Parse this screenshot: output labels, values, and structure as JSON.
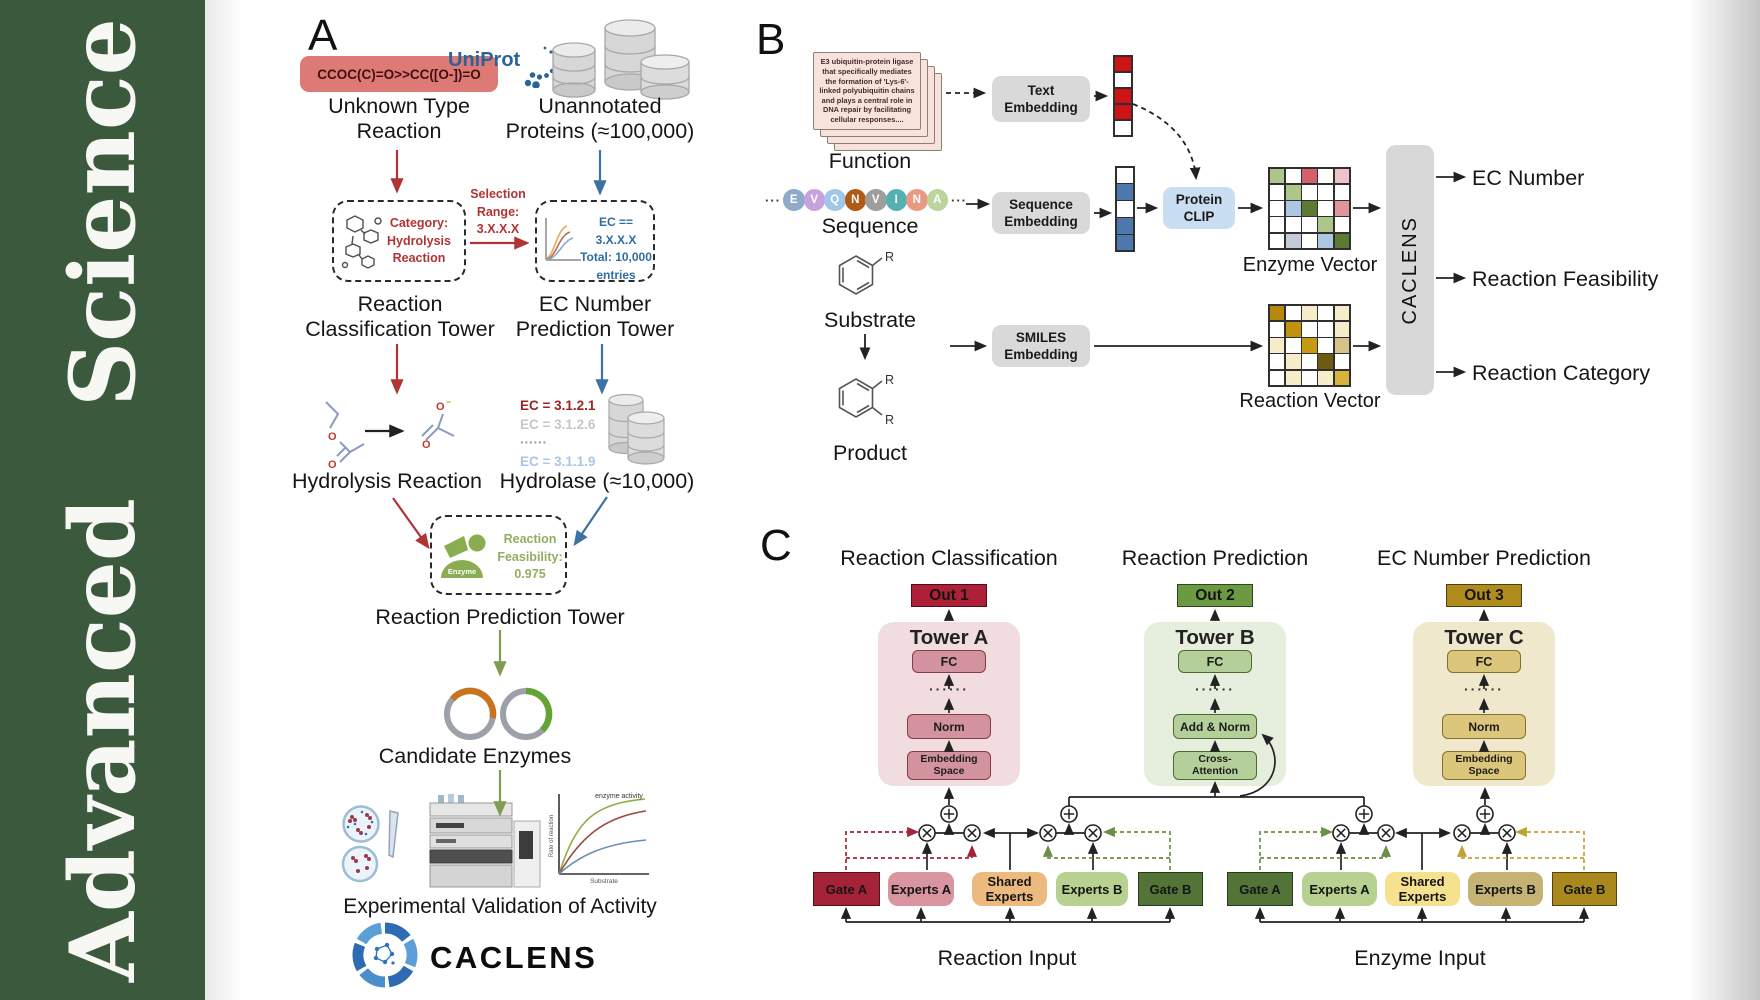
{
  "sidebar": {
    "journal": "Advanced Science",
    "bg": "#3b593d"
  },
  "panelA": {
    "label": "A",
    "smiles_reaction": "CCOC(C)=O>>CC([O-])=O",
    "smiles_bg": "#dd7a75",
    "unknown_l1": "Unknown Type",
    "unknown_l2": "Reaction",
    "uniprot": "UniProt",
    "unannotated_l1": "Unannotated",
    "unannotated_l2": "Proteins (≈100,000)",
    "classification_box": {
      "l1": "Category:",
      "l2": "Hydrolysis",
      "l3": "Reaction",
      "color": "#b13434"
    },
    "selection": {
      "l1": "Selection",
      "l2": "Range:",
      "l3": "3.X.X.X",
      "color": "#b13434"
    },
    "ec_box": {
      "l1": "EC == 3.X.X.X",
      "l2": "Total: 10,000",
      "l3": "entries",
      "color": "#2e6da4"
    },
    "tower1_l1": "Reaction",
    "tower1_l2": "Classification Tower",
    "tower2_l1": "EC Number",
    "tower2_l2": "Prediction Tower",
    "hydrolysis_label": "Hydrolysis Reaction",
    "ec_list": [
      {
        "text": "EC = 3.1.2.1",
        "color": "#9c2424",
        "bold": true
      },
      {
        "text": "EC = 3.1.2.6",
        "color": "#c6c6c6",
        "bold": false
      },
      {
        "text": "······",
        "color": "#9a9a9a",
        "bold": true
      },
      {
        "text": "EC = 3.1.1.9",
        "color": "#a9c6e4",
        "bold": false
      }
    ],
    "hydrolase_label": "Hydrolase (≈10,000)",
    "enzyme_badge": "Enzyme",
    "feasibility": {
      "l1": "Reaction",
      "l2": "Feasibility:",
      "l3": "0.975",
      "color": "#93ae60"
    },
    "tower3_label": "Reaction Prediction Tower",
    "candidate_label": "Candidate Enzymes",
    "graph": {
      "title": "enzyme activity",
      "ylabel": "Rate of reaction",
      "xlabel": "Substrate"
    },
    "validation_label": "Experimental Validation of Activity",
    "logo_text": "CACLENS"
  },
  "panelB": {
    "label": "B",
    "card_text": "E3 ubiquitin-protein ligase that specifically mediates the formation of 'Lys-6'-linked polyubiquitin chains and plays a central role in DNA repair by facilitating cellular responses....",
    "function_label": "Function",
    "ellipsis": "···",
    "residues": [
      {
        "letter": "E",
        "color": "#8fa9c9"
      },
      {
        "letter": "V",
        "color": "#c6a3de"
      },
      {
        "letter": "Q",
        "color": "#9fc8e8"
      },
      {
        "letter": "N",
        "color": "#b05a1a"
      },
      {
        "letter": "V",
        "color": "#9d9d9d"
      },
      {
        "letter": "I",
        "color": "#55b0b0"
      },
      {
        "letter": "N",
        "color": "#e89a82"
      },
      {
        "letter": "A",
        "color": "#bcd4a0"
      }
    ],
    "sequence_label": "Sequence",
    "substrate_label": "Substrate",
    "product_label": "Product",
    "r_label": "R",
    "text_embedding": {
      "l1": "Text",
      "l2": "Embedding"
    },
    "sequence_embedding": {
      "l1": "Sequence",
      "l2": "Embedding"
    },
    "smiles_embedding": {
      "l1": "SMILES",
      "l2": "Embedding"
    },
    "protein_clip": {
      "l1": "Protein",
      "l2": "CLIP",
      "bg": "#c9def2"
    },
    "text_vector": [
      "#cf1216",
      "#ffffff",
      "#cf1216",
      "#cf1216",
      "#ffffff"
    ],
    "sequence_vector": [
      "#ffffff",
      "#4d78ae",
      "#ffffff",
      "#4d78ae",
      "#4d78ae"
    ],
    "enzyme_vector_label": "Enzyme Vector",
    "reaction_vector_label": "Reaction Vector",
    "enzyme_matrix": [
      [
        "#adc78a",
        "#ffffff",
        "#d5606c",
        "#ffffff",
        "#f0c3ca"
      ],
      [
        "#ffffff",
        "#adc78a",
        "#ffffff",
        "#ffffff",
        "#ffffff"
      ],
      [
        "#ffffff",
        "#adc6e2",
        "#5d7a35",
        "#ffffff",
        "#e2949b"
      ],
      [
        "#ffffff",
        "#ffffff",
        "#ffffff",
        "#adc78a",
        "#ffffff"
      ],
      [
        "#ffffff",
        "#c2cbd6",
        "#ffffff",
        "#adc6e2",
        "#5d7a35"
      ]
    ],
    "reaction_matrix": [
      [
        "#b8870e",
        "#ffffff",
        "#f6eecb",
        "#ffffff",
        "#f6eecb"
      ],
      [
        "#ffffff",
        "#c1920f",
        "#ffffff",
        "#ffffff",
        "#f6eecb"
      ],
      [
        "#f6eecb",
        "#ffffff",
        "#c79a14",
        "#ffffff",
        "#d6c28a"
      ],
      [
        "#ffffff",
        "#f6eecb",
        "#ffffff",
        "#6f5a12",
        "#ffffff"
      ],
      [
        "#ffffff",
        "#f6eecb",
        "#ffffff",
        "#f6eecb",
        "#d8b33c"
      ]
    ],
    "caclens_bar": "CACLENS",
    "outputs": [
      "EC Number",
      "Reaction Feasibility",
      "Reaction Category"
    ]
  },
  "panelC": {
    "label": "C",
    "col_titles": [
      "Reaction Classification",
      "Reaction Prediction",
      "EC Number Prediction"
    ],
    "outs": [
      {
        "label": "Out 1",
        "bg": "#ae2038"
      },
      {
        "label": "Out 2",
        "bg": "#6b9a43"
      },
      {
        "label": "Out 3",
        "bg": "#b08c1e"
      }
    ],
    "towers": [
      {
        "title": "Tower A",
        "bg": "#f1dce0",
        "box_bg": "#d2929e",
        "box_border": "#873b49",
        "boxes": [
          "FC",
          "······",
          "Norm",
          "Embedding Space"
        ]
      },
      {
        "title": "Tower B",
        "bg": "#e6eedd",
        "box_bg": "#b5cf9b",
        "box_border": "#4c6a2e",
        "boxes": [
          "FC",
          "······",
          "Add & Norm",
          "Cross-Attention"
        ]
      },
      {
        "title": "Tower C",
        "bg": "#f0e8cd",
        "box_bg": "#dbc67b",
        "box_border": "#83722a",
        "boxes": [
          "FC",
          "······",
          "Norm",
          "Embedding Space"
        ]
      }
    ],
    "expert_groups": [
      {
        "input_label": "Reaction Input",
        "boxes": [
          {
            "label": "Gate A",
            "bg": "#a42337",
            "shape": "gate"
          },
          {
            "label": "Experts A",
            "bg": "#d8949f",
            "shape": "expert"
          },
          {
            "label": "Shared Experts",
            "bg": "#ecba7e",
            "shape": "expert"
          },
          {
            "label": "Experts B",
            "bg": "#b7d190",
            "shape": "expert"
          },
          {
            "label": "Gate B",
            "bg": "#527436",
            "shape": "gate"
          }
        ]
      },
      {
        "input_label": "Enzyme Input",
        "boxes": [
          {
            "label": "Gate A",
            "bg": "#527436",
            "shape": "gate"
          },
          {
            "label": "Experts A",
            "bg": "#b7d190",
            "shape": "expert"
          },
          {
            "label": "Shared Experts",
            "bg": "#f6e18f",
            "shape": "expert"
          },
          {
            "label": "Experts B",
            "bg": "#c5b373",
            "shape": "expert"
          },
          {
            "label": "Gate B",
            "bg": "#a9881d",
            "shape": "gate"
          }
        ]
      }
    ]
  }
}
